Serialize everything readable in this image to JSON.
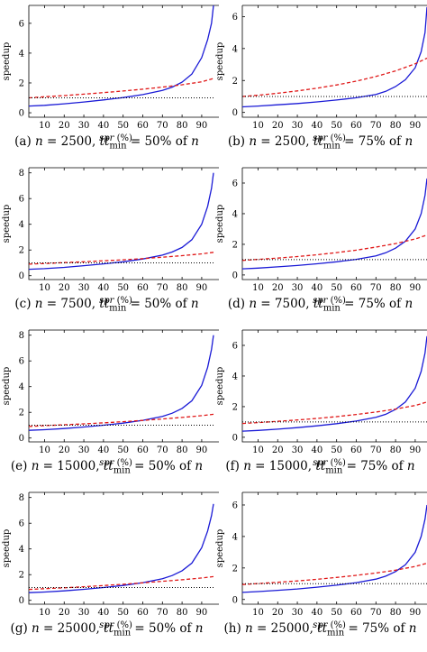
{
  "captions": [
    {
      "tag": "(a)",
      "n": "2500",
      "tt": "50%"
    },
    {
      "tag": "(b)",
      "n": "2500",
      "tt": "75%"
    },
    {
      "tag": "(c)",
      "n": "7500",
      "tt": "50%"
    },
    {
      "tag": "(d)",
      "n": "7500",
      "tt": "75%"
    },
    {
      "tag": "(e)",
      "n": "15000",
      "tt": "50%"
    },
    {
      "tag": "(f)",
      "n": "15000",
      "tt": "75%"
    },
    {
      "tag": "(g)",
      "n": "25000",
      "tt": "50%"
    },
    {
      "tag": "(h)",
      "n": "25000",
      "tt": "75%"
    }
  ],
  "caption_parts": {
    "eq": " = ",
    "sep": ", ",
    "tt": "tt",
    "sub": "min",
    "of": " of ",
    "nvar": "n"
  },
  "colors": {
    "blue": "#1a1ad6",
    "red": "#e01818",
    "black": "#000000"
  },
  "chart_data": [
    {
      "type": "line",
      "xlabel_italic": "spr",
      "xlabel_rest": " (%)",
      "ylabel": "speedup",
      "xticks": [
        10,
        20,
        30,
        40,
        50,
        60,
        70,
        80,
        90
      ],
      "yticks": [
        0,
        2,
        4,
        6
      ],
      "xlim": [
        2,
        96
      ],
      "ylim": [
        -0.3,
        7.2
      ],
      "series": [
        {
          "style": "solid",
          "color": "blue",
          "x": [
            2,
            10,
            20,
            30,
            40,
            50,
            60,
            70,
            75,
            80,
            85,
            90,
            93,
            95,
            96
          ],
          "y": [
            0.45,
            0.5,
            0.6,
            0.72,
            0.86,
            1.02,
            1.22,
            1.5,
            1.72,
            2.05,
            2.6,
            3.7,
            4.9,
            6.0,
            7.2
          ]
        },
        {
          "style": "dashed",
          "color": "red",
          "x": [
            2,
            10,
            20,
            30,
            40,
            50,
            60,
            70,
            80,
            90,
            96
          ],
          "y": [
            1.0,
            1.07,
            1.15,
            1.25,
            1.35,
            1.46,
            1.58,
            1.72,
            1.88,
            2.08,
            2.3
          ]
        },
        {
          "style": "dotted",
          "color": "black",
          "x": [
            2,
            96
          ],
          "y": [
            1,
            1
          ]
        }
      ]
    },
    {
      "type": "line",
      "xlabel_italic": "spr",
      "xlabel_rest": " (%)",
      "ylabel": "speedup",
      "xticks": [
        10,
        20,
        30,
        40,
        50,
        60,
        70,
        80,
        90
      ],
      "yticks": [
        0,
        2,
        4,
        6
      ],
      "xlim": [
        2,
        96
      ],
      "ylim": [
        -0.3,
        6.7
      ],
      "series": [
        {
          "style": "solid",
          "color": "blue",
          "x": [
            2,
            10,
            20,
            30,
            40,
            50,
            60,
            70,
            75,
            80,
            85,
            90,
            93,
            95,
            96
          ],
          "y": [
            0.35,
            0.4,
            0.48,
            0.56,
            0.66,
            0.78,
            0.92,
            1.12,
            1.32,
            1.62,
            2.05,
            2.8,
            3.8,
            5.0,
            6.6
          ]
        },
        {
          "style": "dashed",
          "color": "red",
          "x": [
            2,
            10,
            20,
            30,
            40,
            50,
            60,
            70,
            80,
            90,
            96
          ],
          "y": [
            1.0,
            1.08,
            1.2,
            1.35,
            1.52,
            1.72,
            1.96,
            2.25,
            2.6,
            3.05,
            3.4
          ]
        },
        {
          "style": "dotted",
          "color": "black",
          "x": [
            2,
            96
          ],
          "y": [
            1,
            1
          ]
        }
      ]
    },
    {
      "type": "line",
      "xlabel_italic": "spr",
      "xlabel_rest": " (%)",
      "ylabel": "speedup",
      "xticks": [
        10,
        20,
        30,
        40,
        50,
        60,
        70,
        80,
        90
      ],
      "yticks": [
        0,
        2,
        4,
        6,
        8
      ],
      "xlim": [
        2,
        96
      ],
      "ylim": [
        -0.3,
        8.4
      ],
      "series": [
        {
          "style": "solid",
          "color": "blue",
          "x": [
            2,
            10,
            20,
            30,
            40,
            50,
            60,
            70,
            75,
            80,
            85,
            90,
            93,
            95,
            96
          ],
          "y": [
            0.5,
            0.55,
            0.65,
            0.78,
            0.92,
            1.08,
            1.3,
            1.6,
            1.85,
            2.2,
            2.8,
            4.0,
            5.4,
            6.8,
            8.0
          ]
        },
        {
          "style": "dashed",
          "color": "red",
          "x": [
            2,
            10,
            20,
            30,
            40,
            50,
            60,
            70,
            80,
            90,
            96
          ],
          "y": [
            0.9,
            0.95,
            1.02,
            1.08,
            1.16,
            1.24,
            1.33,
            1.44,
            1.56,
            1.7,
            1.82
          ]
        },
        {
          "style": "dotted",
          "color": "black",
          "x": [
            2,
            96
          ],
          "y": [
            1,
            1
          ]
        }
      ]
    },
    {
      "type": "line",
      "xlabel_italic": "spr",
      "xlabel_rest": " (%)",
      "ylabel": "speedup",
      "xticks": [
        10,
        20,
        30,
        40,
        50,
        60,
        70,
        80,
        90
      ],
      "yticks": [
        0,
        2,
        4,
        6
      ],
      "xlim": [
        2,
        96
      ],
      "ylim": [
        -0.3,
        7.0
      ],
      "series": [
        {
          "style": "solid",
          "color": "blue",
          "x": [
            2,
            10,
            20,
            30,
            40,
            50,
            60,
            70,
            75,
            80,
            85,
            90,
            93,
            95,
            96
          ],
          "y": [
            0.4,
            0.45,
            0.53,
            0.62,
            0.73,
            0.86,
            1.02,
            1.24,
            1.45,
            1.75,
            2.2,
            3.0,
            4.0,
            5.2,
            6.3
          ]
        },
        {
          "style": "dashed",
          "color": "red",
          "x": [
            2,
            10,
            20,
            30,
            40,
            50,
            60,
            70,
            80,
            90,
            96
          ],
          "y": [
            0.95,
            1.02,
            1.1,
            1.2,
            1.32,
            1.46,
            1.62,
            1.82,
            2.05,
            2.35,
            2.6
          ]
        },
        {
          "style": "dotted",
          "color": "black",
          "x": [
            2,
            96
          ],
          "y": [
            1,
            1
          ]
        }
      ]
    },
    {
      "type": "line",
      "xlabel_italic": "spr",
      "xlabel_rest": " (%)",
      "ylabel": "speedup",
      "xticks": [
        10,
        20,
        30,
        40,
        50,
        60,
        70,
        80,
        90
      ],
      "yticks": [
        0,
        2,
        4,
        6,
        8
      ],
      "xlim": [
        2,
        96
      ],
      "ylim": [
        -0.3,
        8.4
      ],
      "series": [
        {
          "style": "solid",
          "color": "blue",
          "x": [
            2,
            10,
            20,
            30,
            40,
            50,
            60,
            70,
            75,
            80,
            85,
            90,
            93,
            95,
            96
          ],
          "y": [
            0.6,
            0.65,
            0.74,
            0.86,
            1.0,
            1.16,
            1.38,
            1.68,
            1.93,
            2.3,
            2.9,
            4.1,
            5.5,
            6.9,
            8.0
          ]
        },
        {
          "style": "dashed",
          "color": "red",
          "x": [
            2,
            10,
            20,
            30,
            40,
            50,
            60,
            70,
            80,
            90,
            96
          ],
          "y": [
            0.9,
            0.96,
            1.03,
            1.1,
            1.18,
            1.27,
            1.37,
            1.48,
            1.6,
            1.74,
            1.85
          ]
        },
        {
          "style": "dotted",
          "color": "black",
          "x": [
            2,
            96
          ],
          "y": [
            1,
            1
          ]
        }
      ]
    },
    {
      "type": "line",
      "xlabel_italic": "spr",
      "xlabel_rest": " (%)",
      "ylabel": "speedup",
      "xticks": [
        10,
        20,
        30,
        40,
        50,
        60,
        70,
        80,
        90
      ],
      "yticks": [
        0,
        2,
        4,
        6
      ],
      "xlim": [
        2,
        96
      ],
      "ylim": [
        -0.3,
        7.0
      ],
      "series": [
        {
          "style": "solid",
          "color": "blue",
          "x": [
            2,
            10,
            20,
            30,
            40,
            50,
            60,
            70,
            75,
            80,
            85,
            90,
            93,
            95,
            96
          ],
          "y": [
            0.4,
            0.45,
            0.53,
            0.63,
            0.75,
            0.89,
            1.06,
            1.3,
            1.5,
            1.82,
            2.3,
            3.2,
            4.3,
            5.5,
            6.6
          ]
        },
        {
          "style": "dashed",
          "color": "red",
          "x": [
            2,
            10,
            20,
            30,
            40,
            50,
            60,
            70,
            80,
            90,
            96
          ],
          "y": [
            0.9,
            0.96,
            1.04,
            1.13,
            1.23,
            1.35,
            1.49,
            1.65,
            1.84,
            2.08,
            2.3
          ]
        },
        {
          "style": "dotted",
          "color": "black",
          "x": [
            2,
            96
          ],
          "y": [
            1,
            1
          ]
        }
      ]
    },
    {
      "type": "line",
      "xlabel_italic": "spr",
      "xlabel_rest": " (%)",
      "ylabel": "speedup",
      "xticks": [
        10,
        20,
        30,
        40,
        50,
        60,
        70,
        80,
        90
      ],
      "yticks": [
        0,
        2,
        4,
        6,
        8
      ],
      "xlim": [
        2,
        96
      ],
      "ylim": [
        -0.3,
        8.4
      ],
      "series": [
        {
          "style": "solid",
          "color": "blue",
          "x": [
            2,
            10,
            20,
            30,
            40,
            50,
            60,
            70,
            75,
            80,
            85,
            90,
            93,
            95,
            96
          ],
          "y": [
            0.6,
            0.65,
            0.74,
            0.86,
            1.0,
            1.16,
            1.38,
            1.68,
            1.93,
            2.3,
            2.9,
            4.1,
            5.4,
            6.6,
            7.5
          ]
        },
        {
          "style": "dashed",
          "color": "red",
          "x": [
            2,
            10,
            20,
            30,
            40,
            50,
            60,
            70,
            80,
            90,
            96
          ],
          "y": [
            0.85,
            0.91,
            0.98,
            1.06,
            1.15,
            1.25,
            1.36,
            1.48,
            1.6,
            1.74,
            1.85
          ]
        },
        {
          "style": "dotted",
          "color": "black",
          "x": [
            2,
            96
          ],
          "y": [
            1,
            1
          ]
        }
      ]
    },
    {
      "type": "line",
      "xlabel_italic": "spr",
      "xlabel_rest": " (%)",
      "ylabel": "speedup",
      "xticks": [
        10,
        20,
        30,
        40,
        50,
        60,
        70,
        80,
        90
      ],
      "yticks": [
        0,
        2,
        4,
        6
      ],
      "xlim": [
        2,
        96
      ],
      "ylim": [
        -0.3,
        6.8
      ],
      "series": [
        {
          "style": "solid",
          "color": "blue",
          "x": [
            2,
            10,
            20,
            30,
            40,
            50,
            60,
            70,
            75,
            80,
            85,
            90,
            93,
            95,
            96
          ],
          "y": [
            0.45,
            0.5,
            0.58,
            0.67,
            0.78,
            0.91,
            1.07,
            1.29,
            1.48,
            1.77,
            2.2,
            3.0,
            4.0,
            5.1,
            6.0
          ]
        },
        {
          "style": "dashed",
          "color": "red",
          "x": [
            2,
            10,
            20,
            30,
            40,
            50,
            60,
            70,
            80,
            90,
            96
          ],
          "y": [
            0.95,
            1.01,
            1.09,
            1.18,
            1.28,
            1.4,
            1.53,
            1.68,
            1.86,
            2.1,
            2.3
          ]
        },
        {
          "style": "dotted",
          "color": "black",
          "x": [
            2,
            96
          ],
          "y": [
            1,
            1
          ]
        }
      ]
    }
  ]
}
